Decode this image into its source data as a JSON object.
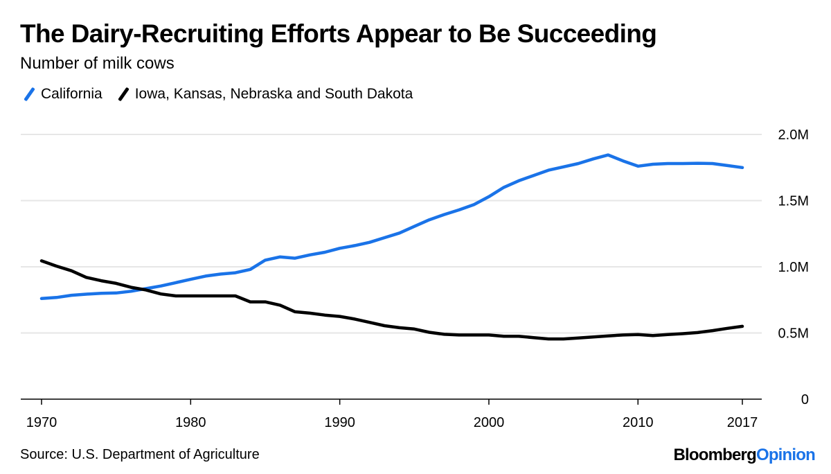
{
  "chart_data": {
    "type": "line",
    "title": "The Dairy-Recruiting Efforts Appear to Be Succeeding",
    "subtitle": "Number of milk cows",
    "xlabel": "",
    "ylabel": "",
    "xlim": [
      1970,
      2017
    ],
    "ylim": [
      0,
      2000000
    ],
    "grid": true,
    "legend_position": "top-left",
    "x_ticks": [
      1970,
      1980,
      1990,
      2000,
      2010,
      2017
    ],
    "y_ticks": [
      0,
      500000,
      1000000,
      1500000,
      2000000
    ],
    "y_tick_labels": [
      "0",
      "0.5M",
      "1.0M",
      "1.5M",
      "2.0M"
    ],
    "x": [
      1970,
      1971,
      1972,
      1973,
      1974,
      1975,
      1976,
      1977,
      1978,
      1979,
      1980,
      1981,
      1982,
      1983,
      1984,
      1985,
      1986,
      1987,
      1988,
      1989,
      1990,
      1991,
      1992,
      1993,
      1994,
      1995,
      1996,
      1997,
      1998,
      1999,
      2000,
      2001,
      2002,
      2003,
      2004,
      2005,
      2006,
      2007,
      2008,
      2009,
      2010,
      2011,
      2012,
      2013,
      2014,
      2015,
      2016,
      2017
    ],
    "series": [
      {
        "name": "California",
        "color": "#1a73e8",
        "values": [
          760000,
          768000,
          785000,
          793000,
          800000,
          802000,
          815000,
          835000,
          855000,
          880000,
          905000,
          930000,
          945000,
          955000,
          980000,
          1050000,
          1075000,
          1065000,
          1090000,
          1110000,
          1140000,
          1160000,
          1185000,
          1220000,
          1255000,
          1305000,
          1355000,
          1395000,
          1430000,
          1470000,
          1530000,
          1600000,
          1650000,
          1690000,
          1730000,
          1755000,
          1780000,
          1815000,
          1845000,
          1800000,
          1760000,
          1775000,
          1780000,
          1780000,
          1782000,
          1780000,
          1765000,
          1750000
        ]
      },
      {
        "name": "Iowa, Kansas, Nebraska and South Dakota",
        "color": "#000000",
        "values": [
          1045000,
          1005000,
          970000,
          920000,
          895000,
          875000,
          845000,
          825000,
          795000,
          780000,
          780000,
          780000,
          780000,
          780000,
          735000,
          735000,
          710000,
          660000,
          650000,
          635000,
          625000,
          605000,
          580000,
          555000,
          540000,
          530000,
          505000,
          490000,
          485000,
          485000,
          485000,
          475000,
          475000,
          465000,
          455000,
          455000,
          462000,
          470000,
          478000,
          485000,
          488000,
          480000,
          488000,
          495000,
          503000,
          518000,
          535000,
          550000
        ]
      }
    ]
  },
  "footer": {
    "source": "Source: U.S. Department of Agriculture",
    "brand_primary": "Bloomberg",
    "brand_secondary": "Opinion"
  }
}
